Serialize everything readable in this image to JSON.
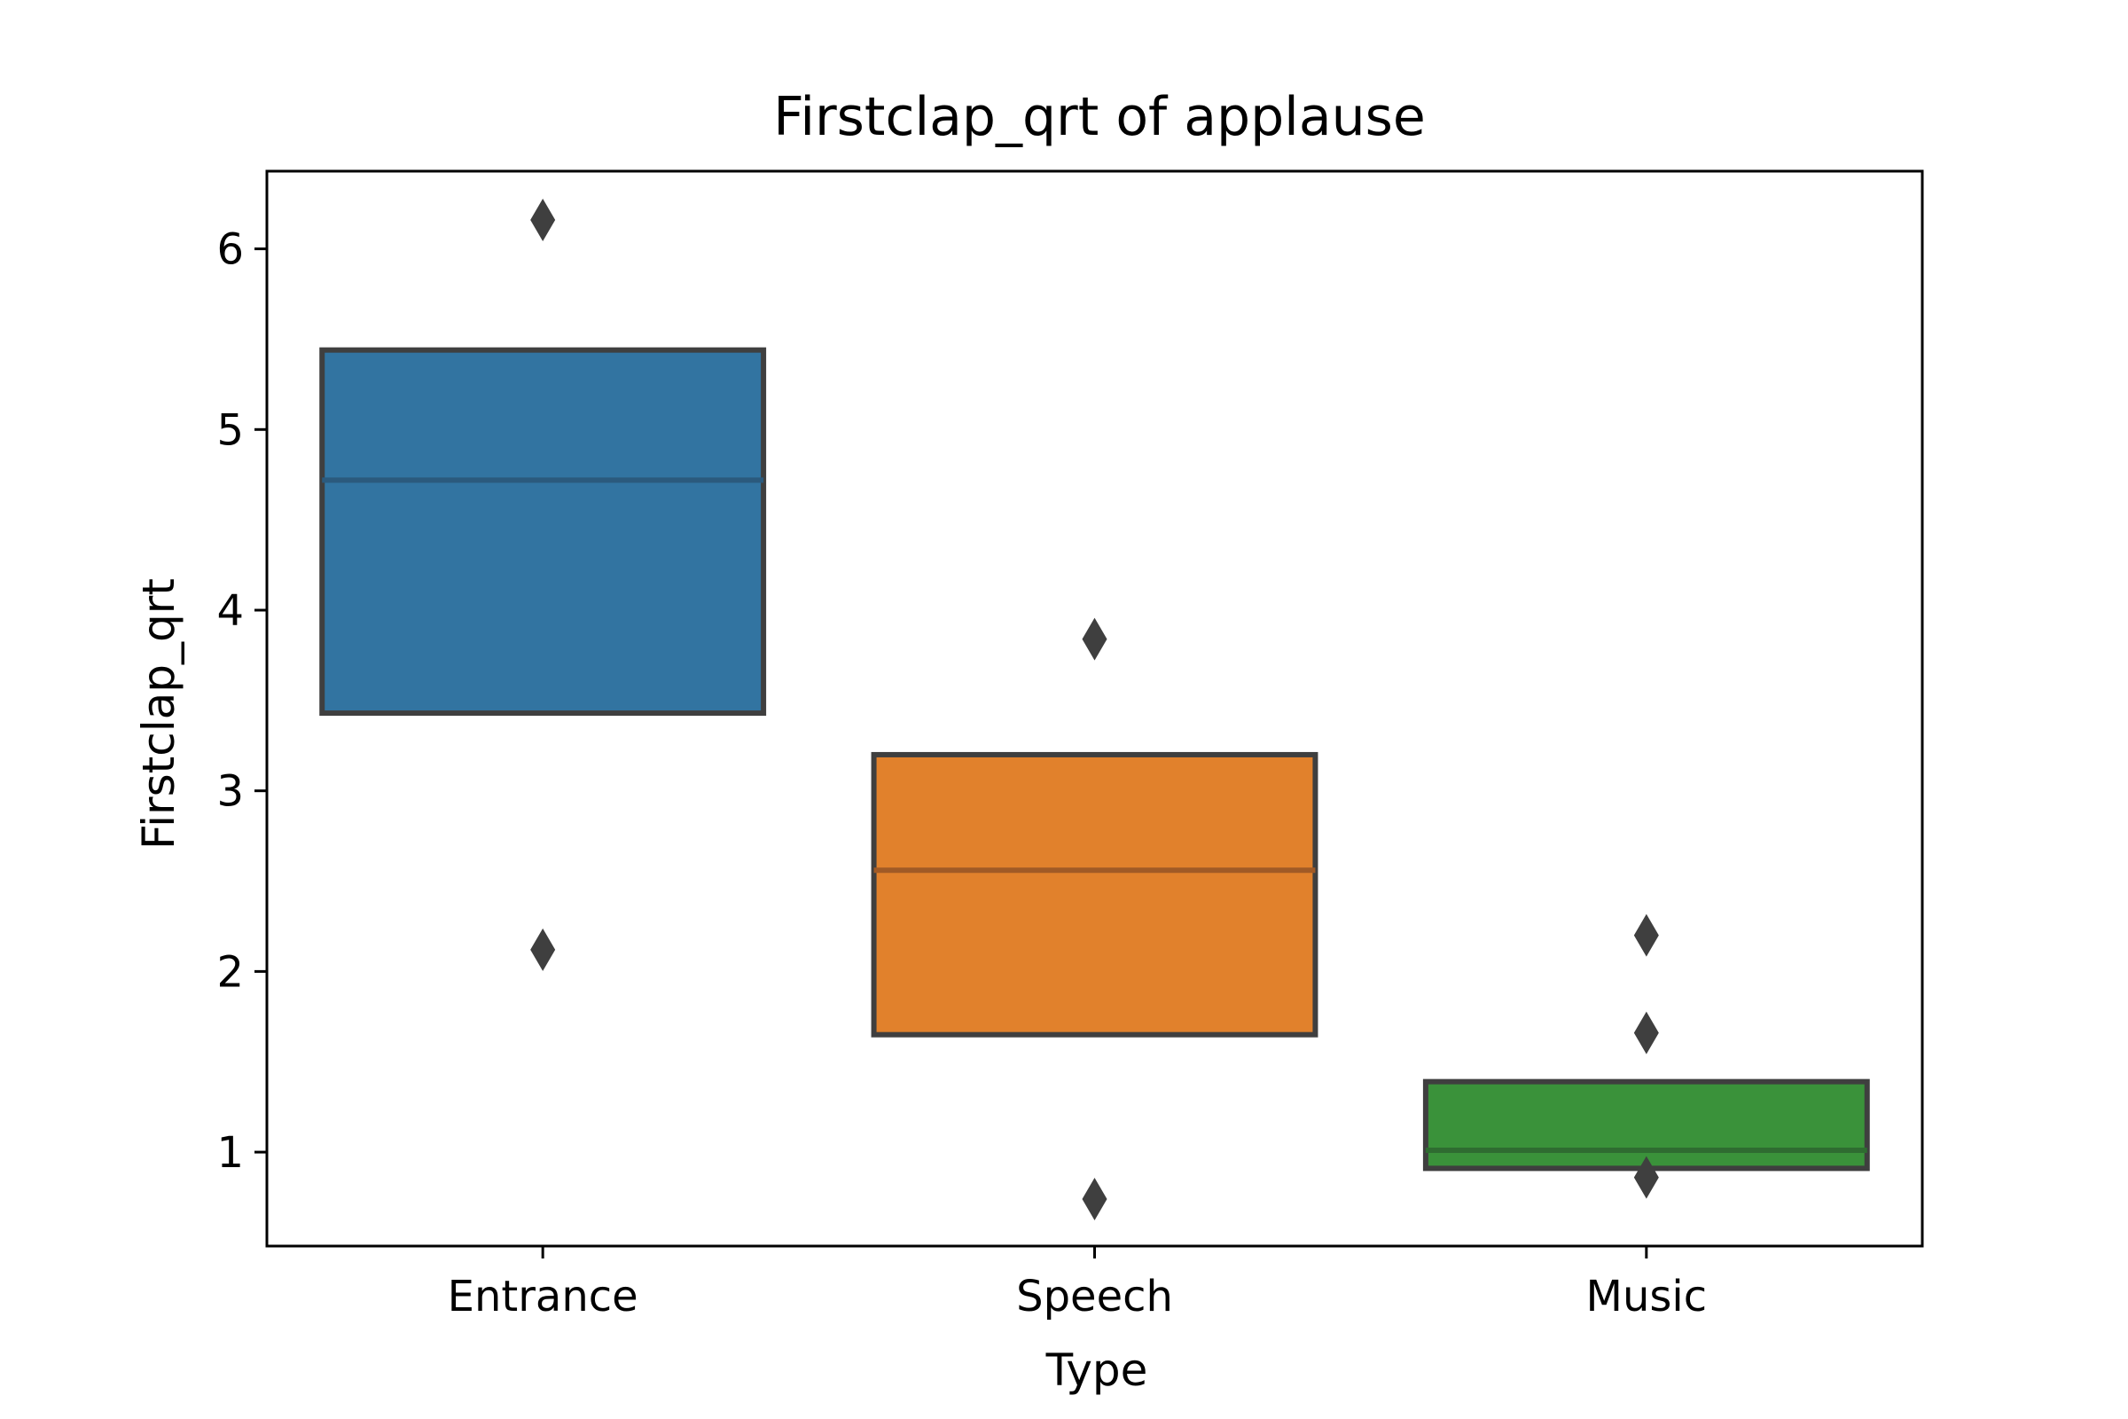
{
  "chart_data": {
    "type": "boxen",
    "title": "Firstclap_qrt of applause",
    "xlabel": "Type",
    "ylabel": "Firstclap_qrt",
    "ylim": [
      0.48,
      6.43
    ],
    "yticks": [
      1,
      2,
      3,
      4,
      5,
      6
    ],
    "ytick_labels": [
      "1",
      "2",
      "3",
      "4",
      "5",
      "6"
    ],
    "grid": false,
    "categories": [
      "Entrance",
      "Speech",
      "Music"
    ],
    "boxes": [
      {
        "category": "Entrance",
        "color": "#3274a1",
        "median_color": "#2b5a7d",
        "lower": 3.43,
        "upper": 5.44,
        "median": 4.72,
        "outliers": [
          6.16,
          2.12
        ]
      },
      {
        "category": "Speech",
        "color": "#e1812c",
        "median_color": "#a05a26",
        "lower": 1.65,
        "upper": 3.2,
        "median": 2.56,
        "outliers": [
          3.84,
          0.74
        ]
      },
      {
        "category": "Music",
        "color": "#3a923a",
        "median_color": "#2f6c31",
        "lower": 0.91,
        "upper": 1.39,
        "median": 1.01,
        "outliers": [
          2.2,
          1.66,
          0.86
        ]
      }
    ],
    "edge_color": "#3f3f3f"
  }
}
